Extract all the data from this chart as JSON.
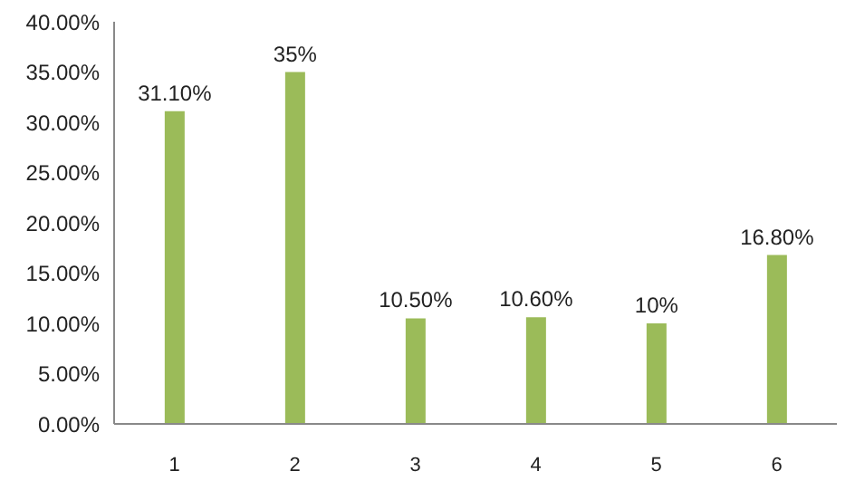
{
  "chart_data": {
    "type": "bar",
    "categories": [
      "1",
      "2",
      "3",
      "4",
      "5",
      "6"
    ],
    "values": [
      31.1,
      35,
      10.5,
      10.6,
      10,
      16.8
    ],
    "value_labels": [
      "31.10%",
      "35%",
      "10.50%",
      "10.60%",
      "10%",
      "16.80%"
    ],
    "color": "#9bbb59",
    "ylim": [
      0,
      40
    ],
    "yticks": [
      {
        "value": 0,
        "label": "0.00%"
      },
      {
        "value": 5,
        "label": "5.00%"
      },
      {
        "value": 10,
        "label": "10.00%"
      },
      {
        "value": 15,
        "label": "15.00%"
      },
      {
        "value": 20,
        "label": "20.00%"
      },
      {
        "value": 25,
        "label": "25.00%"
      },
      {
        "value": 30,
        "label": "30.00%"
      },
      {
        "value": 35,
        "label": "35.00%"
      },
      {
        "value": 40,
        "label": "40.00%"
      }
    ],
    "grid": false,
    "legend": false
  }
}
